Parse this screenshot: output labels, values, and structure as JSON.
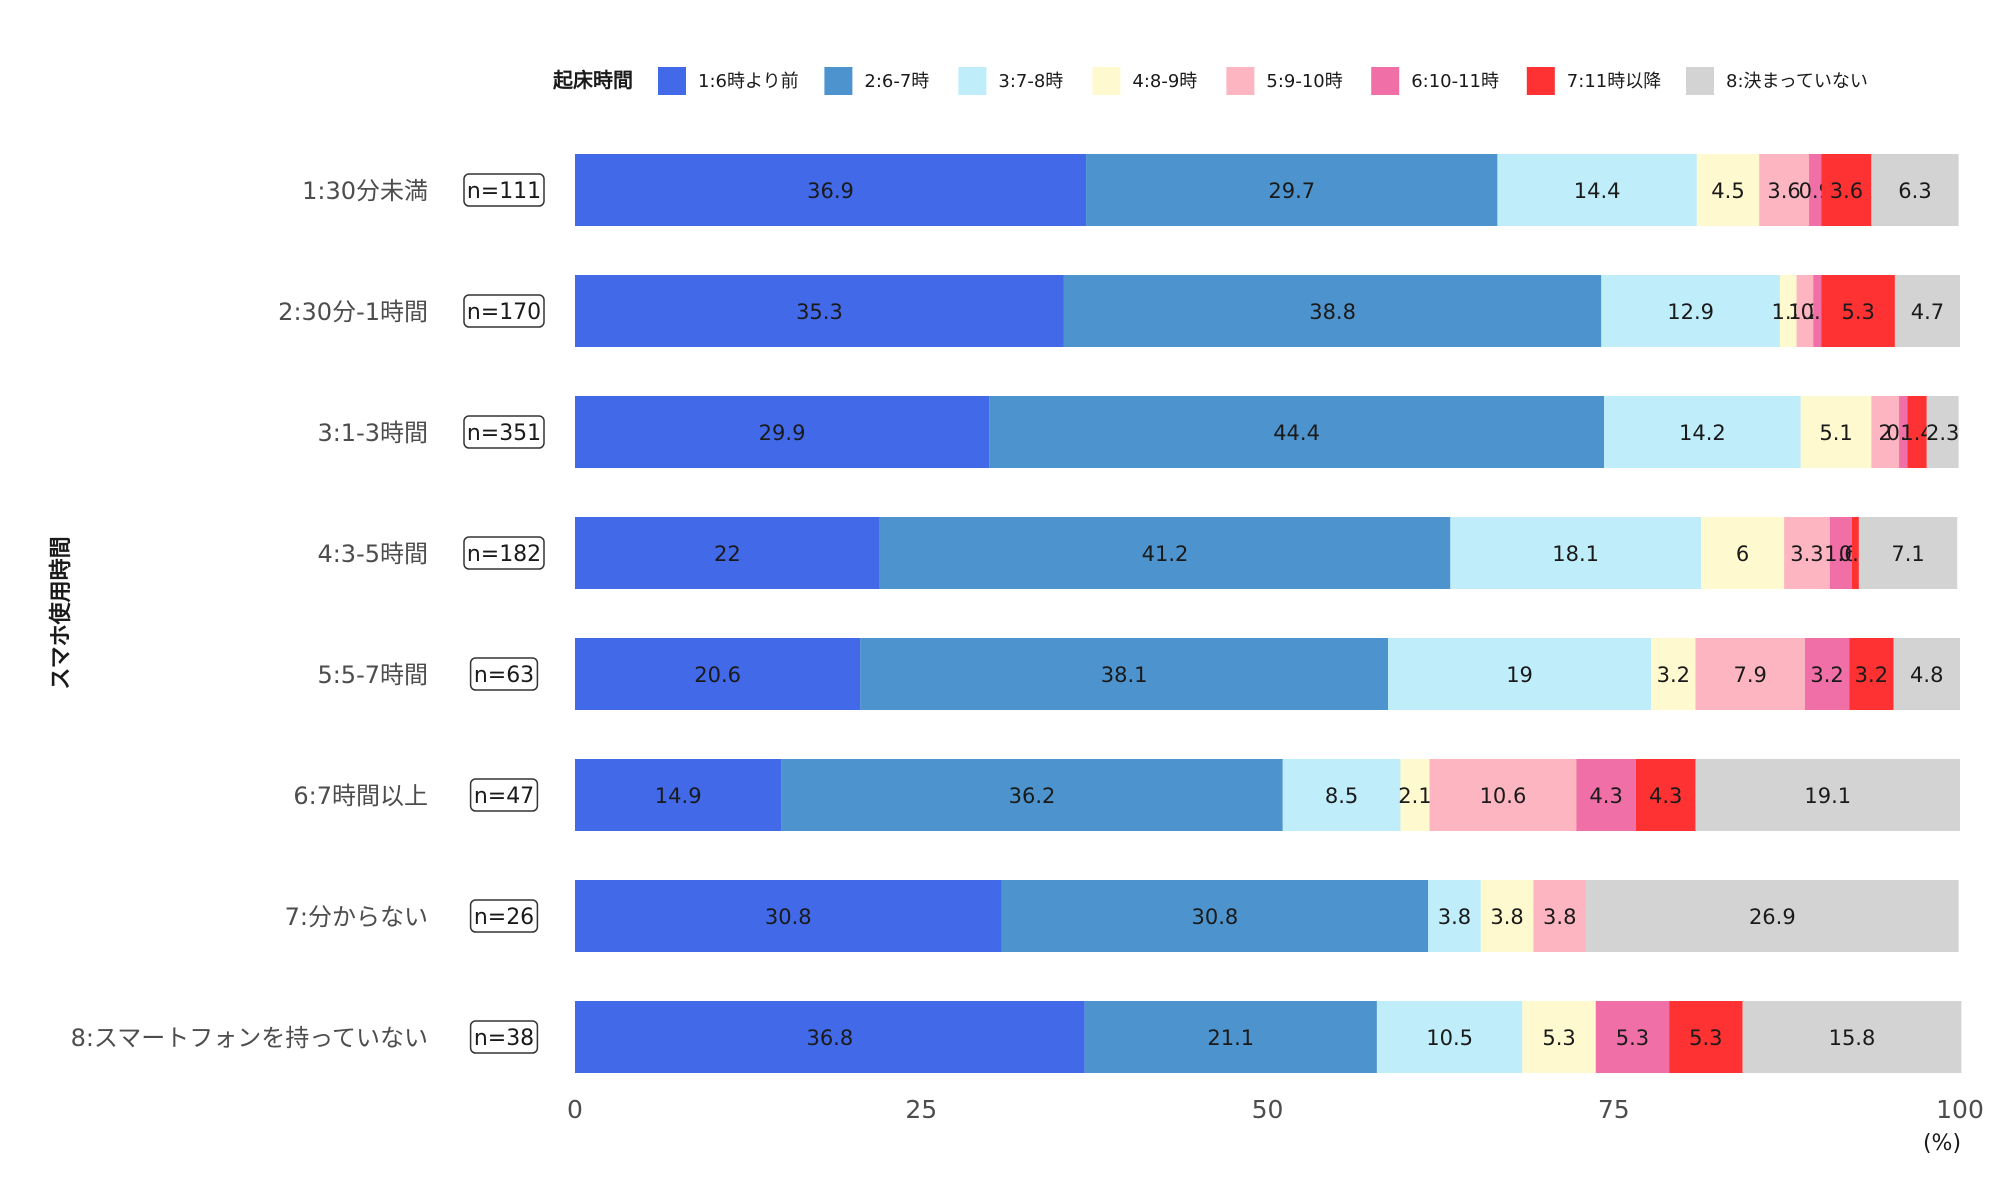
{
  "chart_data": {
    "type": "bar",
    "orientation": "horizontal",
    "stacked": true,
    "ylabel": "スマホ使用時間",
    "unit": "(%)",
    "legend_title": "起床時間",
    "legend_position": "top",
    "xlim": [
      0,
      100
    ],
    "xticks": [
      0,
      25,
      50,
      75,
      100
    ],
    "grid": false,
    "series_names": [
      "1:6時より前",
      "2:6-7時",
      "3:7-8時",
      "4:8-9時",
      "5:9-10時",
      "6:10-11時",
      "7:11時以降",
      "8:決まっていない"
    ],
    "colors": [
      "#4169E8",
      "#4D94CE",
      "#BFEDFA",
      "#FFF9D0",
      "#FDB6C1",
      "#EF6FA6",
      "#FE3232",
      "#D3D3D3"
    ],
    "rows": [
      {
        "label": "1:30分未満",
        "n": "n=111",
        "values": [
          36.9,
          29.7,
          14.4,
          4.5,
          3.6,
          0.9,
          3.6,
          6.3
        ]
      },
      {
        "label": "2:30分-1時間",
        "n": "n=170",
        "values": [
          35.3,
          38.8,
          12.9,
          1.2,
          1.2,
          0.6,
          5.3,
          4.7
        ]
      },
      {
        "label": "3:1-3時間",
        "n": "n=351",
        "values": [
          29.9,
          44.4,
          14.2,
          5.1,
          2,
          0.6,
          1.4,
          2.3
        ]
      },
      {
        "label": "4:3-5時間",
        "n": "n=182",
        "values": [
          22,
          41.2,
          18.1,
          6,
          3.3,
          1.6,
          0.5,
          7.1
        ]
      },
      {
        "label": "5:5-7時間",
        "n": "n=63",
        "values": [
          20.6,
          38.1,
          19,
          3.2,
          7.9,
          3.2,
          3.2,
          4.8
        ]
      },
      {
        "label": "6:7時間以上",
        "n": "n=47",
        "values": [
          14.9,
          36.2,
          8.5,
          2.1,
          10.6,
          4.3,
          4.3,
          19.1
        ]
      },
      {
        "label": "7:分からない",
        "n": "n=26",
        "values": [
          30.8,
          30.8,
          3.8,
          3.8,
          3.8,
          0,
          0,
          26.9
        ]
      },
      {
        "label": "8:スマートフォンを持っていない",
        "n": "n=38",
        "values": [
          36.8,
          21.1,
          10.5,
          5.3,
          0,
          5.3,
          5.3,
          15.8
        ]
      }
    ]
  }
}
